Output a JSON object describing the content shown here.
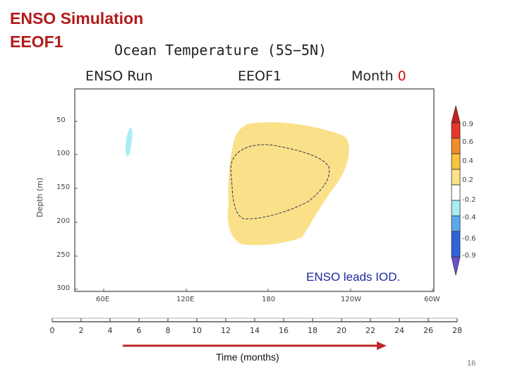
{
  "slide": {
    "title_line1": "ENSO Simulation",
    "title_line2": "EEOF1",
    "page_number": "16"
  },
  "plot": {
    "title": "Ocean Temperature (5S−5N)",
    "run_label": "ENSO  Run",
    "mode_label": "EEOF1",
    "month_word": "Month",
    "month_value": "0",
    "y_axis_label": "Depth (m)",
    "y_ticks": [
      "50",
      "100",
      "150",
      "200",
      "250",
      "300"
    ],
    "x_ticks": [
      "60E",
      "120E",
      "180",
      "120W",
      "60W"
    ],
    "annotation": "ENSO leads IOD.",
    "colors": {
      "warm_fill": "#fbe08a",
      "cool_fill": "#a8ecf5",
      "month_value_color": "#cc1111"
    }
  },
  "colorbar": {
    "labels": [
      "0.9",
      "0.6",
      "0.4",
      "0.2",
      "-0.2",
      "-0.4",
      "-0.6",
      "-0.9"
    ],
    "colors": [
      "#e8362b",
      "#f28c2a",
      "#f9c33c",
      "#fbe08a",
      "#ffffff",
      "#a8ecf5",
      "#5aa9ee",
      "#2f63d8",
      "#6a4ed0"
    ]
  },
  "timeline": {
    "ticks": [
      "0",
      "2",
      "4",
      "6",
      "8",
      "10",
      "12",
      "14",
      "16",
      "18",
      "20",
      "22",
      "24",
      "26",
      "28"
    ],
    "label": "Time (months)",
    "arrow_color": "#c0282a"
  }
}
